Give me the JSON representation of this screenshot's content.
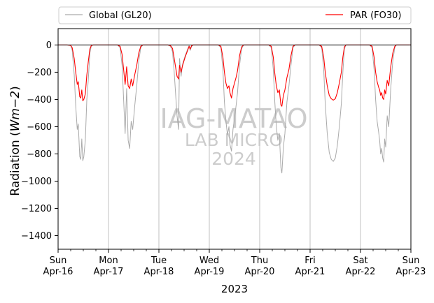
{
  "chart_data": {
    "type": "line",
    "xlabel": "2023",
    "ylabel": "Radiation (Wm−2)",
    "ylabel_parts": {
      "base": "Radiation (",
      "var": "Wm",
      "exp": "−2",
      "close": ")"
    },
    "ylim": [
      -1500,
      120
    ],
    "xlim": [
      0,
      7
    ],
    "yticks": [
      0,
      -200,
      -400,
      -600,
      -800,
      -1000,
      -1200,
      -1400
    ],
    "ytick_labels": [
      "0",
      "−200",
      "−400",
      "−600",
      "−800",
      "−1000",
      "−1200",
      "−1400"
    ],
    "xticks": [
      {
        "x": 0,
        "label1": "Sun",
        "label2": "Apr-16"
      },
      {
        "x": 1,
        "label1": "Mon",
        "label2": "Apr-17"
      },
      {
        "x": 2,
        "label1": "Tue",
        "label2": "Apr-18"
      },
      {
        "x": 3,
        "label1": "Wed",
        "label2": "Apr-19"
      },
      {
        "x": 4,
        "label1": "Thu",
        "label2": "Apr-20"
      },
      {
        "x": 5,
        "label1": "Fri",
        "label2": "Apr-21"
      },
      {
        "x": 6,
        "label1": "Sat",
        "label2": "Apr-22"
      },
      {
        "x": 7,
        "label1": "Sun",
        "label2": "Apr-23"
      }
    ],
    "grid": "vertical",
    "legend_position": "top",
    "watermark": [
      "IAG-MATAO",
      "LAB MICRO",
      "2024"
    ],
    "series": [
      {
        "name": "Global (GL20)",
        "color": "#aaaaaa",
        "points": [
          [
            0.0,
            0
          ],
          [
            0.18,
            0
          ],
          [
            0.25,
            -5
          ],
          [
            0.28,
            -40
          ],
          [
            0.32,
            -220
          ],
          [
            0.35,
            -450
          ],
          [
            0.38,
            -620
          ],
          [
            0.4,
            -580
          ],
          [
            0.43,
            -820
          ],
          [
            0.45,
            -840
          ],
          [
            0.47,
            -690
          ],
          [
            0.49,
            -850
          ],
          [
            0.51,
            -820
          ],
          [
            0.54,
            -700
          ],
          [
            0.57,
            -400
          ],
          [
            0.6,
            -250
          ],
          [
            0.63,
            -60
          ],
          [
            0.66,
            -5
          ],
          [
            0.7,
            0
          ],
          [
            1.0,
            0
          ],
          [
            1.18,
            0
          ],
          [
            1.23,
            -20
          ],
          [
            1.27,
            -150
          ],
          [
            1.3,
            -400
          ],
          [
            1.33,
            -650
          ],
          [
            1.36,
            -320
          ],
          [
            1.39,
            -700
          ],
          [
            1.42,
            -760
          ],
          [
            1.45,
            -560
          ],
          [
            1.48,
            -620
          ],
          [
            1.52,
            -450
          ],
          [
            1.56,
            -300
          ],
          [
            1.6,
            -120
          ],
          [
            1.64,
            -20
          ],
          [
            1.68,
            0
          ],
          [
            2.0,
            0
          ],
          [
            2.18,
            0
          ],
          [
            2.23,
            -10
          ],
          [
            2.27,
            -50
          ],
          [
            2.3,
            -180
          ],
          [
            2.33,
            -350
          ],
          [
            2.36,
            -520
          ],
          [
            2.39,
            -620
          ],
          [
            2.41,
            -100
          ],
          [
            2.44,
            -230
          ],
          [
            2.47,
            -140
          ],
          [
            2.52,
            -80
          ],
          [
            2.57,
            -30
          ],
          [
            2.6,
            -5
          ],
          [
            2.62,
            -40
          ],
          [
            2.65,
            -10
          ],
          [
            2.68,
            0
          ],
          [
            3.0,
            0
          ],
          [
            3.18,
            0
          ],
          [
            3.23,
            -20
          ],
          [
            3.27,
            -180
          ],
          [
            3.3,
            -420
          ],
          [
            3.33,
            -560
          ],
          [
            3.36,
            -660
          ],
          [
            3.39,
            -600
          ],
          [
            3.41,
            -730
          ],
          [
            3.44,
            -780
          ],
          [
            3.47,
            -620
          ],
          [
            3.5,
            -540
          ],
          [
            3.53,
            -450
          ],
          [
            3.56,
            -350
          ],
          [
            3.6,
            -150
          ],
          [
            3.64,
            -30
          ],
          [
            3.68,
            0
          ],
          [
            4.0,
            0
          ],
          [
            4.18,
            0
          ],
          [
            4.23,
            -20
          ],
          [
            4.27,
            -180
          ],
          [
            4.3,
            -420
          ],
          [
            4.33,
            -600
          ],
          [
            4.36,
            -700
          ],
          [
            4.39,
            -650
          ],
          [
            4.42,
            -900
          ],
          [
            4.44,
            -940
          ],
          [
            4.47,
            -750
          ],
          [
            4.5,
            -650
          ],
          [
            4.54,
            -420
          ],
          [
            4.58,
            -300
          ],
          [
            4.62,
            -150
          ],
          [
            4.66,
            -20
          ],
          [
            4.7,
            0
          ],
          [
            5.0,
            0
          ],
          [
            5.18,
            0
          ],
          [
            5.23,
            -20
          ],
          [
            5.27,
            -180
          ],
          [
            5.3,
            -430
          ],
          [
            5.34,
            -650
          ],
          [
            5.38,
            -790
          ],
          [
            5.42,
            -840
          ],
          [
            5.46,
            -855
          ],
          [
            5.5,
            -830
          ],
          [
            5.54,
            -740
          ],
          [
            5.58,
            -600
          ],
          [
            5.62,
            -430
          ],
          [
            5.65,
            -200
          ],
          [
            5.68,
            -30
          ],
          [
            5.71,
            0
          ],
          [
            6.0,
            0
          ],
          [
            6.18,
            0
          ],
          [
            6.23,
            -20
          ],
          [
            6.27,
            -180
          ],
          [
            6.3,
            -400
          ],
          [
            6.33,
            -560
          ],
          [
            6.36,
            -640
          ],
          [
            6.38,
            -700
          ],
          [
            6.4,
            -800
          ],
          [
            6.42,
            -760
          ],
          [
            6.44,
            -830
          ],
          [
            6.46,
            -860
          ],
          [
            6.48,
            -690
          ],
          [
            6.5,
            -750
          ],
          [
            6.53,
            -520
          ],
          [
            6.56,
            -600
          ],
          [
            6.6,
            -320
          ],
          [
            6.64,
            -120
          ],
          [
            6.68,
            -20
          ],
          [
            6.71,
            0
          ],
          [
            7.0,
            0
          ]
        ]
      },
      {
        "name": "PAR (FO30)",
        "color": "#ff0000",
        "points": [
          [
            0.0,
            0
          ],
          [
            0.18,
            0
          ],
          [
            0.25,
            -3
          ],
          [
            0.28,
            -20
          ],
          [
            0.32,
            -100
          ],
          [
            0.35,
            -200
          ],
          [
            0.38,
            -290
          ],
          [
            0.4,
            -270
          ],
          [
            0.43,
            -380
          ],
          [
            0.45,
            -390
          ],
          [
            0.47,
            -330
          ],
          [
            0.49,
            -410
          ],
          [
            0.51,
            -400
          ],
          [
            0.54,
            -360
          ],
          [
            0.57,
            -220
          ],
          [
            0.6,
            -120
          ],
          [
            0.63,
            -30
          ],
          [
            0.66,
            -3
          ],
          [
            0.7,
            0
          ],
          [
            1.0,
            0
          ],
          [
            1.18,
            0
          ],
          [
            1.23,
            -10
          ],
          [
            1.27,
            -70
          ],
          [
            1.3,
            -180
          ],
          [
            1.33,
            -290
          ],
          [
            1.36,
            -160
          ],
          [
            1.39,
            -300
          ],
          [
            1.42,
            -320
          ],
          [
            1.45,
            -250
          ],
          [
            1.48,
            -300
          ],
          [
            1.52,
            -220
          ],
          [
            1.56,
            -150
          ],
          [
            1.6,
            -60
          ],
          [
            1.64,
            -10
          ],
          [
            1.68,
            0
          ],
          [
            2.0,
            0
          ],
          [
            2.18,
            0
          ],
          [
            2.23,
            -5
          ],
          [
            2.27,
            -25
          ],
          [
            2.3,
            -90
          ],
          [
            2.33,
            -160
          ],
          [
            2.36,
            -230
          ],
          [
            2.39,
            -250
          ],
          [
            2.41,
            -150
          ],
          [
            2.44,
            -200
          ],
          [
            2.47,
            -150
          ],
          [
            2.52,
            -90
          ],
          [
            2.57,
            -40
          ],
          [
            2.6,
            -10
          ],
          [
            2.62,
            -30
          ],
          [
            2.65,
            -5
          ],
          [
            2.68,
            0
          ],
          [
            3.0,
            0
          ],
          [
            3.18,
            0
          ],
          [
            3.23,
            -10
          ],
          [
            3.27,
            -90
          ],
          [
            3.3,
            -200
          ],
          [
            3.33,
            -280
          ],
          [
            3.36,
            -320
          ],
          [
            3.39,
            -300
          ],
          [
            3.41,
            -350
          ],
          [
            3.44,
            -390
          ],
          [
            3.47,
            -320
          ],
          [
            3.5,
            -280
          ],
          [
            3.53,
            -240
          ],
          [
            3.56,
            -190
          ],
          [
            3.6,
            -80
          ],
          [
            3.64,
            -15
          ],
          [
            3.68,
            0
          ],
          [
            4.0,
            0
          ],
          [
            4.18,
            0
          ],
          [
            4.23,
            -10
          ],
          [
            4.27,
            -90
          ],
          [
            4.3,
            -210
          ],
          [
            4.33,
            -300
          ],
          [
            4.36,
            -350
          ],
          [
            4.39,
            -330
          ],
          [
            4.42,
            -440
          ],
          [
            4.44,
            -450
          ],
          [
            4.47,
            -370
          ],
          [
            4.5,
            -330
          ],
          [
            4.54,
            -240
          ],
          [
            4.58,
            -180
          ],
          [
            4.62,
            -80
          ],
          [
            4.66,
            -10
          ],
          [
            4.7,
            0
          ],
          [
            5.0,
            0
          ],
          [
            5.18,
            0
          ],
          [
            5.23,
            -10
          ],
          [
            5.27,
            -90
          ],
          [
            5.3,
            -200
          ],
          [
            5.34,
            -300
          ],
          [
            5.38,
            -370
          ],
          [
            5.42,
            -395
          ],
          [
            5.46,
            -405
          ],
          [
            5.5,
            -395
          ],
          [
            5.54,
            -350
          ],
          [
            5.58,
            -280
          ],
          [
            5.62,
            -200
          ],
          [
            5.65,
            -90
          ],
          [
            5.68,
            -15
          ],
          [
            5.71,
            0
          ],
          [
            6.0,
            0
          ],
          [
            6.18,
            0
          ],
          [
            6.23,
            -10
          ],
          [
            6.27,
            -90
          ],
          [
            6.3,
            -200
          ],
          [
            6.33,
            -270
          ],
          [
            6.36,
            -310
          ],
          [
            6.38,
            -330
          ],
          [
            6.4,
            -370
          ],
          [
            6.42,
            -350
          ],
          [
            6.44,
            -390
          ],
          [
            6.46,
            -400
          ],
          [
            6.48,
            -330
          ],
          [
            6.5,
            -360
          ],
          [
            6.53,
            -260
          ],
          [
            6.56,
            -300
          ],
          [
            6.6,
            -160
          ],
          [
            6.64,
            -60
          ],
          [
            6.68,
            -10
          ],
          [
            6.71,
            0
          ],
          [
            7.0,
            0
          ]
        ]
      }
    ]
  }
}
